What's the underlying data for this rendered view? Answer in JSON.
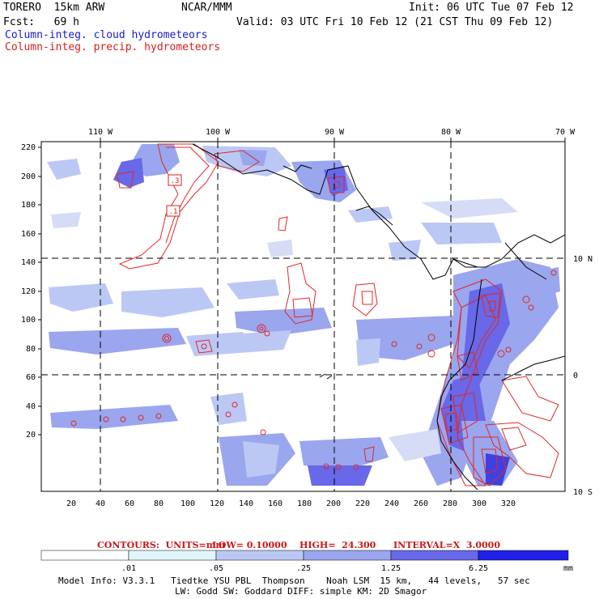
{
  "header": {
    "model": "TORERO  15km ARW",
    "org": "NCAR/MMM",
    "init": "Init: 06 UTC Tue 07 Feb 12",
    "fcst": "Fcst:   69 h",
    "valid": "Valid: 03 UTC Fri 10 Feb 12 (21 CST Thu 09 Feb 12)",
    "field1": "Column-integ. cloud hydrometeors",
    "field2": "Column-integ. precip. hydrometeors"
  },
  "map": {
    "lon_labels": [
      "110 W",
      "100 W",
      "90 W",
      "80 W",
      "70 W"
    ],
    "lat_labels": [
      "10 N",
      "0",
      "10 S"
    ],
    "y_ticks": [
      "220",
      "200",
      "180",
      "160",
      "140",
      "120",
      "100",
      "80",
      "60",
      "40",
      "20"
    ],
    "x_ticks": [
      "20",
      "40",
      "60",
      "80",
      "100",
      "120",
      "140",
      "160",
      "180",
      "200",
      "220",
      "240",
      "260",
      "280",
      "300",
      "320"
    ],
    "contour_labels": [
      ".3",
      ".1"
    ]
  },
  "contours": {
    "units": "CONTOURS:  UNITS=mm",
    "low": "LOW= 0.10000",
    "high": "HIGH=  24.300",
    "interval": "INTERVAL=X  3.0000"
  },
  "colorbar": {
    "thresholds": [
      ".01",
      ".05",
      ".25",
      "1.25",
      "6.25"
    ],
    "unit": "mm",
    "colors": [
      "#ffffff",
      "#e0f6fa",
      "#bcc8f4",
      "#9aa6ee",
      "#6868e8",
      "#4040e0",
      "#2020e8"
    ]
  },
  "model_info": {
    "line1": "Model Info: V3.3.1   Tiedtke YSU PBL  Thompson    Noah LSM  15 km,   44 levels,   57 sec",
    "line2": "LW: Godd SW: Goddard DIFF: simple KM: 2D Smagor"
  }
}
